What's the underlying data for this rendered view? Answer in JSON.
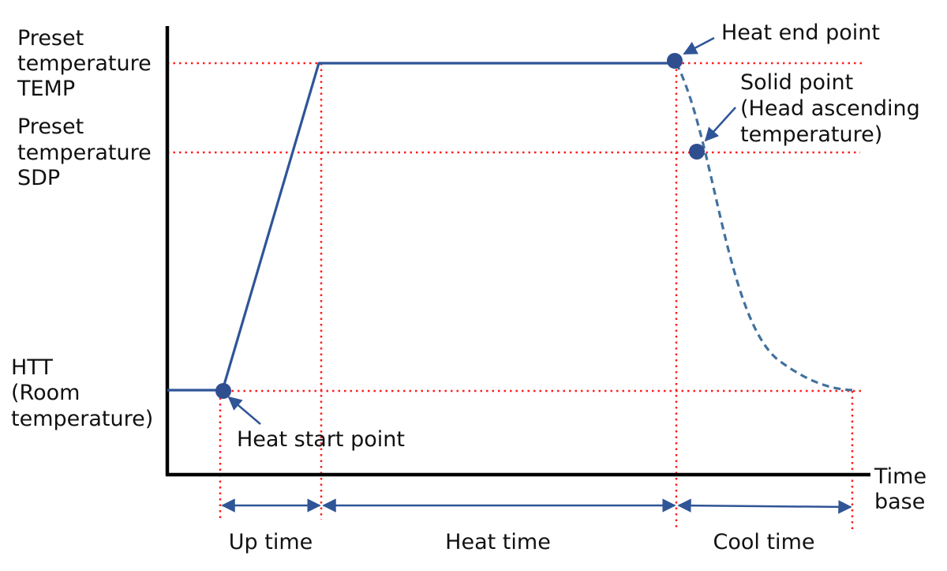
{
  "colors": {
    "axis": "#000000",
    "curve": "#2f5597",
    "cool_curve": "#41719c",
    "guide": "#ff1e1e",
    "marker": "#2f4e8f",
    "text": "#111111"
  },
  "y_axis_labels": {
    "temp": [
      "Preset",
      "temperature",
      "TEMP"
    ],
    "sdp": [
      "Preset",
      "temperature",
      "SDP"
    ],
    "htt": [
      "HTT",
      "(Room",
      "temperature)"
    ]
  },
  "x_axis_label": [
    "Time",
    "base"
  ],
  "annotations": {
    "heat_start": "Heat start point",
    "heat_end": "Heat end point",
    "solid_point": [
      "Solid point",
      "(Head ascending",
      "temperature)"
    ]
  },
  "intervals": {
    "up": "Up time",
    "heat": "Heat time",
    "cool": "Cool time"
  },
  "icons": {
    "marker": "filled-circle",
    "pointer": "arrow",
    "dimension": "double-headed-arrow"
  }
}
